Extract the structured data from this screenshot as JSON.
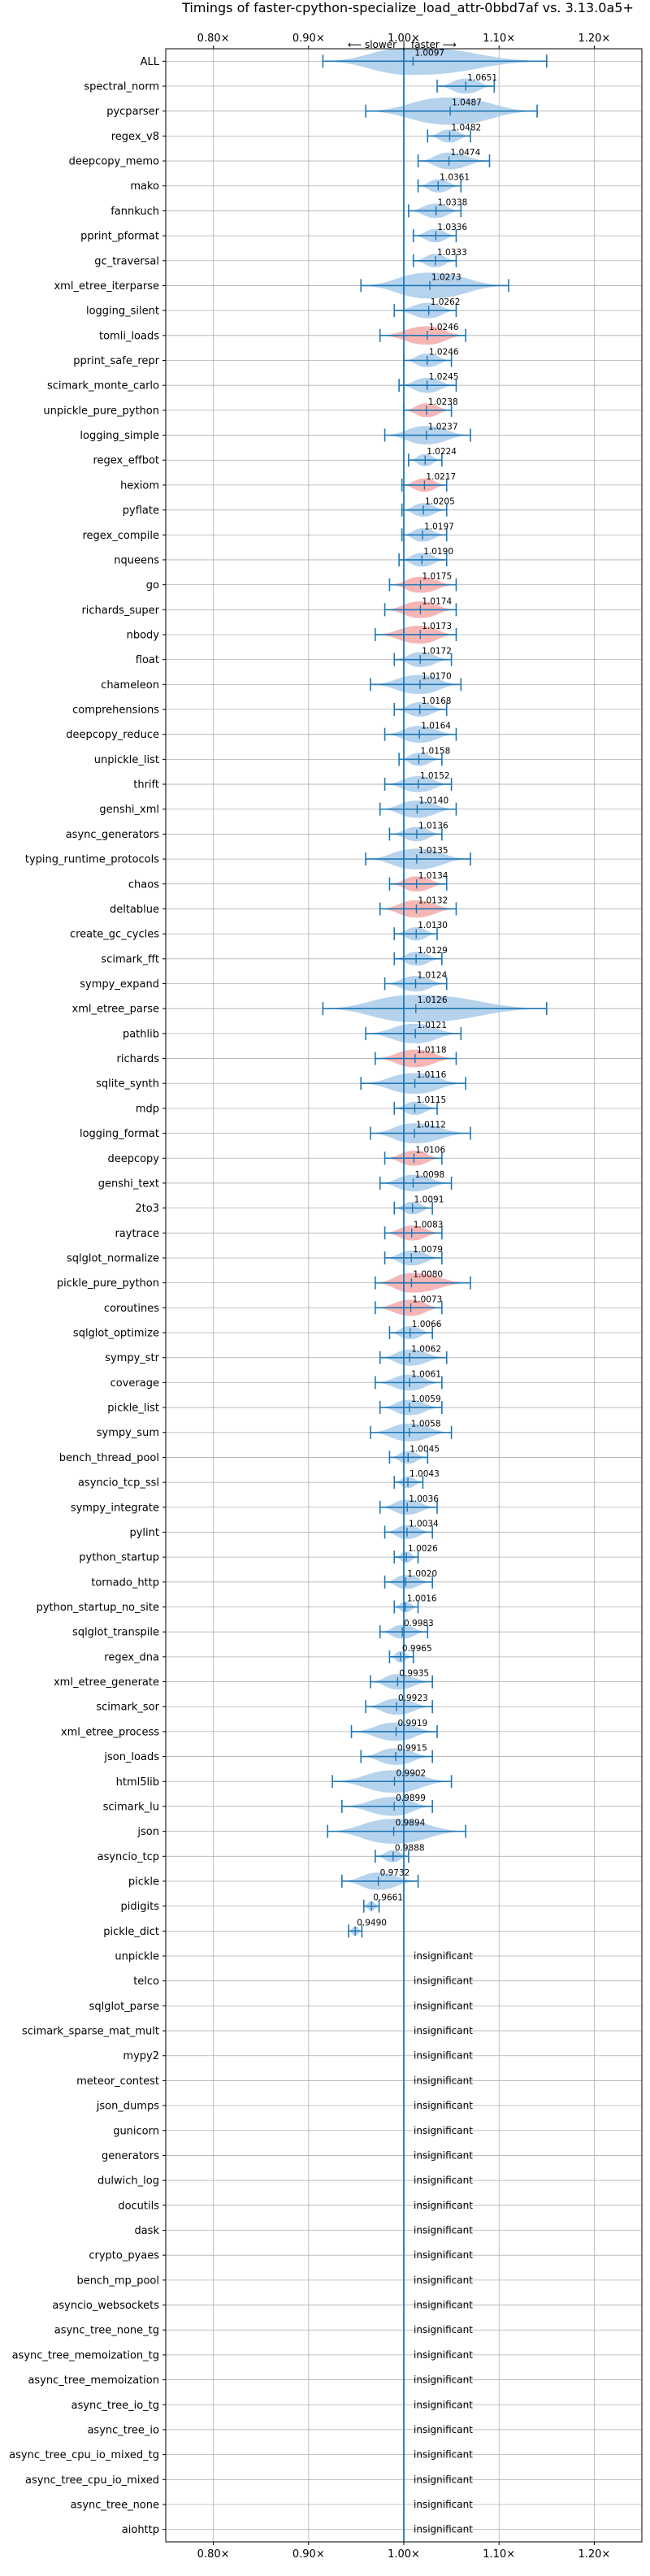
{
  "chart_data": {
    "type": "violin",
    "title": "Timings of faster-cpython-specialize_load_attr-0bbd7af vs. 3.13.0a5+",
    "direction_labels": {
      "slower": "⟵ slower",
      "separator": "|",
      "faster": "faster ⟶"
    },
    "xlim": [
      0.75,
      1.25
    ],
    "x_ticks": [
      0.8,
      0.9,
      1.0,
      1.1,
      1.2
    ],
    "x_tick_labels": [
      "0.80×",
      "0.90×",
      "1.00×",
      "1.10×",
      "1.20×"
    ],
    "reference_line": 1.0,
    "grid": true,
    "colors": {
      "faster": "#a9cbea",
      "slower": "#f4a9a9",
      "line": "#1f77b4",
      "grid": "#b0b0b0"
    },
    "insignificant_label": "insignificant",
    "benchmarks": [
      {
        "name": "ALL",
        "mean": 1.0097,
        "label": "1.0097",
        "lo": 0.915,
        "hi": 1.15,
        "color": "faster"
      },
      {
        "name": "spectral_norm",
        "mean": 1.0651,
        "label": "1.0651",
        "lo": 1.035,
        "hi": 1.095,
        "color": "faster"
      },
      {
        "name": "pycparser",
        "mean": 1.0487,
        "label": "1.0487",
        "lo": 0.96,
        "hi": 1.14,
        "color": "faster"
      },
      {
        "name": "regex_v8",
        "mean": 1.0482,
        "label": "1.0482",
        "lo": 1.025,
        "hi": 1.07,
        "color": "faster"
      },
      {
        "name": "deepcopy_memo",
        "mean": 1.0474,
        "label": "1.0474",
        "lo": 1.015,
        "hi": 1.09,
        "color": "faster"
      },
      {
        "name": "mako",
        "mean": 1.0361,
        "label": "1.0361",
        "lo": 1.015,
        "hi": 1.06,
        "color": "faster"
      },
      {
        "name": "fannkuch",
        "mean": 1.0338,
        "label": "1.0338",
        "lo": 1.005,
        "hi": 1.06,
        "color": "faster"
      },
      {
        "name": "pprint_pformat",
        "mean": 1.0336,
        "label": "1.0336",
        "lo": 1.01,
        "hi": 1.055,
        "color": "faster"
      },
      {
        "name": "gc_traversal",
        "mean": 1.0333,
        "label": "1.0333",
        "lo": 1.01,
        "hi": 1.055,
        "color": "faster"
      },
      {
        "name": "xml_etree_iterparse",
        "mean": 1.0273,
        "label": "1.0273",
        "lo": 0.955,
        "hi": 1.11,
        "color": "faster"
      },
      {
        "name": "logging_silent",
        "mean": 1.0262,
        "label": "1.0262",
        "lo": 0.99,
        "hi": 1.055,
        "color": "faster"
      },
      {
        "name": "tomli_loads",
        "mean": 1.0246,
        "label": "1.0246",
        "lo": 0.975,
        "hi": 1.065,
        "color": "slower"
      },
      {
        "name": "pprint_safe_repr",
        "mean": 1.0246,
        "label": "1.0246",
        "lo": 1.0,
        "hi": 1.05,
        "color": "faster"
      },
      {
        "name": "scimark_monte_carlo",
        "mean": 1.0245,
        "label": "1.0245",
        "lo": 0.995,
        "hi": 1.055,
        "color": "faster"
      },
      {
        "name": "unpickle_pure_python",
        "mean": 1.0238,
        "label": "1.0238",
        "lo": 1.0,
        "hi": 1.05,
        "color": "slower"
      },
      {
        "name": "logging_simple",
        "mean": 1.0237,
        "label": "1.0237",
        "lo": 0.98,
        "hi": 1.07,
        "color": "faster"
      },
      {
        "name": "regex_effbot",
        "mean": 1.0224,
        "label": "1.0224",
        "lo": 1.005,
        "hi": 1.04,
        "color": "faster"
      },
      {
        "name": "hexiom",
        "mean": 1.0217,
        "label": "1.0217",
        "lo": 0.998,
        "hi": 1.045,
        "color": "slower"
      },
      {
        "name": "pyflate",
        "mean": 1.0205,
        "label": "1.0205",
        "lo": 0.998,
        "hi": 1.045,
        "color": "faster"
      },
      {
        "name": "regex_compile",
        "mean": 1.0197,
        "label": "1.0197",
        "lo": 0.998,
        "hi": 1.045,
        "color": "faster"
      },
      {
        "name": "nqueens",
        "mean": 1.019,
        "label": "1.0190",
        "lo": 0.995,
        "hi": 1.045,
        "color": "faster"
      },
      {
        "name": "go",
        "mean": 1.0175,
        "label": "1.0175",
        "lo": 0.985,
        "hi": 1.055,
        "color": "slower"
      },
      {
        "name": "richards_super",
        "mean": 1.0174,
        "label": "1.0174",
        "lo": 0.98,
        "hi": 1.055,
        "color": "slower"
      },
      {
        "name": "nbody",
        "mean": 1.0173,
        "label": "1.0173",
        "lo": 0.97,
        "hi": 1.055,
        "color": "slower"
      },
      {
        "name": "float",
        "mean": 1.0172,
        "label": "1.0172",
        "lo": 0.99,
        "hi": 1.05,
        "color": "faster"
      },
      {
        "name": "chameleon",
        "mean": 1.017,
        "label": "1.0170",
        "lo": 0.965,
        "hi": 1.06,
        "color": "faster"
      },
      {
        "name": "comprehensions",
        "mean": 1.0168,
        "label": "1.0168",
        "lo": 0.99,
        "hi": 1.045,
        "color": "faster"
      },
      {
        "name": "deepcopy_reduce",
        "mean": 1.0164,
        "label": "1.0164",
        "lo": 0.98,
        "hi": 1.055,
        "color": "faster"
      },
      {
        "name": "unpickle_list",
        "mean": 1.0158,
        "label": "1.0158",
        "lo": 0.995,
        "hi": 1.04,
        "color": "faster"
      },
      {
        "name": "thrift",
        "mean": 1.0152,
        "label": "1.0152",
        "lo": 0.98,
        "hi": 1.05,
        "color": "faster"
      },
      {
        "name": "genshi_xml",
        "mean": 1.014,
        "label": "1.0140",
        "lo": 0.975,
        "hi": 1.055,
        "color": "faster"
      },
      {
        "name": "async_generators",
        "mean": 1.0136,
        "label": "1.0136",
        "lo": 0.985,
        "hi": 1.04,
        "color": "faster"
      },
      {
        "name": "typing_runtime_protocols",
        "mean": 1.0135,
        "label": "1.0135",
        "lo": 0.96,
        "hi": 1.07,
        "color": "faster"
      },
      {
        "name": "chaos",
        "mean": 1.0134,
        "label": "1.0134",
        "lo": 0.985,
        "hi": 1.045,
        "color": "slower"
      },
      {
        "name": "deltablue",
        "mean": 1.0132,
        "label": "1.0132",
        "lo": 0.975,
        "hi": 1.055,
        "color": "slower"
      },
      {
        "name": "create_gc_cycles",
        "mean": 1.013,
        "label": "1.0130",
        "lo": 0.99,
        "hi": 1.035,
        "color": "faster"
      },
      {
        "name": "scimark_fft",
        "mean": 1.0129,
        "label": "1.0129",
        "lo": 0.99,
        "hi": 1.04,
        "color": "faster"
      },
      {
        "name": "sympy_expand",
        "mean": 1.0124,
        "label": "1.0124",
        "lo": 0.98,
        "hi": 1.045,
        "color": "faster"
      },
      {
        "name": "xml_etree_parse",
        "mean": 1.0126,
        "label": "1.0126",
        "lo": 0.915,
        "hi": 1.15,
        "color": "faster"
      },
      {
        "name": "pathlib",
        "mean": 1.0121,
        "label": "1.0121",
        "lo": 0.96,
        "hi": 1.06,
        "color": "faster"
      },
      {
        "name": "richards",
        "mean": 1.0118,
        "label": "1.0118",
        "lo": 0.97,
        "hi": 1.055,
        "color": "slower"
      },
      {
        "name": "sqlite_synth",
        "mean": 1.0116,
        "label": "1.0116",
        "lo": 0.955,
        "hi": 1.065,
        "color": "faster"
      },
      {
        "name": "mdp",
        "mean": 1.0115,
        "label": "1.0115",
        "lo": 0.99,
        "hi": 1.035,
        "color": "faster"
      },
      {
        "name": "logging_format",
        "mean": 1.0112,
        "label": "1.0112",
        "lo": 0.965,
        "hi": 1.07,
        "color": "faster"
      },
      {
        "name": "deepcopy",
        "mean": 1.0106,
        "label": "1.0106",
        "lo": 0.98,
        "hi": 1.04,
        "color": "slower"
      },
      {
        "name": "genshi_text",
        "mean": 1.0098,
        "label": "1.0098",
        "lo": 0.975,
        "hi": 1.05,
        "color": "faster"
      },
      {
        "name": "2to3",
        "mean": 1.0091,
        "label": "1.0091",
        "lo": 0.99,
        "hi": 1.03,
        "color": "faster"
      },
      {
        "name": "raytrace",
        "mean": 1.0083,
        "label": "1.0083",
        "lo": 0.98,
        "hi": 1.04,
        "color": "slower"
      },
      {
        "name": "sqlglot_normalize",
        "mean": 1.0079,
        "label": "1.0079",
        "lo": 0.98,
        "hi": 1.04,
        "color": "faster"
      },
      {
        "name": "pickle_pure_python",
        "mean": 1.008,
        "label": "1.0080",
        "lo": 0.97,
        "hi": 1.07,
        "color": "slower"
      },
      {
        "name": "coroutines",
        "mean": 1.0073,
        "label": "1.0073",
        "lo": 0.97,
        "hi": 1.04,
        "color": "slower"
      },
      {
        "name": "sqlglot_optimize",
        "mean": 1.0066,
        "label": "1.0066",
        "lo": 0.985,
        "hi": 1.03,
        "color": "faster"
      },
      {
        "name": "sympy_str",
        "mean": 1.0062,
        "label": "1.0062",
        "lo": 0.975,
        "hi": 1.045,
        "color": "faster"
      },
      {
        "name": "coverage",
        "mean": 1.0061,
        "label": "1.0061",
        "lo": 0.97,
        "hi": 1.04,
        "color": "faster"
      },
      {
        "name": "pickle_list",
        "mean": 1.0059,
        "label": "1.0059",
        "lo": 0.975,
        "hi": 1.04,
        "color": "faster"
      },
      {
        "name": "sympy_sum",
        "mean": 1.0058,
        "label": "1.0058",
        "lo": 0.965,
        "hi": 1.05,
        "color": "faster"
      },
      {
        "name": "bench_thread_pool",
        "mean": 1.0045,
        "label": "1.0045",
        "lo": 0.985,
        "hi": 1.025,
        "color": "faster"
      },
      {
        "name": "asyncio_tcp_ssl",
        "mean": 1.0043,
        "label": "1.0043",
        "lo": 0.99,
        "hi": 1.02,
        "color": "faster"
      },
      {
        "name": "sympy_integrate",
        "mean": 1.0036,
        "label": "1.0036",
        "lo": 0.975,
        "hi": 1.035,
        "color": "faster"
      },
      {
        "name": "pylint",
        "mean": 1.0034,
        "label": "1.0034",
        "lo": 0.98,
        "hi": 1.03,
        "color": "faster"
      },
      {
        "name": "python_startup",
        "mean": 1.0026,
        "label": "1.0026",
        "lo": 0.99,
        "hi": 1.015,
        "color": "faster"
      },
      {
        "name": "tornado_http",
        "mean": 1.002,
        "label": "1.0020",
        "lo": 0.98,
        "hi": 1.03,
        "color": "faster"
      },
      {
        "name": "python_startup_no_site",
        "mean": 1.0016,
        "label": "1.0016",
        "lo": 0.99,
        "hi": 1.015,
        "color": "faster"
      },
      {
        "name": "sqlglot_transpile",
        "mean": 0.9983,
        "label": "0.9983",
        "lo": 0.975,
        "hi": 1.025,
        "color": "faster"
      },
      {
        "name": "regex_dna",
        "mean": 0.9965,
        "label": "0.9965",
        "lo": 0.985,
        "hi": 1.01,
        "color": "faster"
      },
      {
        "name": "xml_etree_generate",
        "mean": 0.9935,
        "label": "0.9935",
        "lo": 0.965,
        "hi": 1.03,
        "color": "faster"
      },
      {
        "name": "scimark_sor",
        "mean": 0.9923,
        "label": "0.9923",
        "lo": 0.96,
        "hi": 1.03,
        "color": "faster"
      },
      {
        "name": "xml_etree_process",
        "mean": 0.9919,
        "label": "0.9919",
        "lo": 0.945,
        "hi": 1.035,
        "color": "faster"
      },
      {
        "name": "json_loads",
        "mean": 0.9915,
        "label": "0.9915",
        "lo": 0.955,
        "hi": 1.03,
        "color": "faster"
      },
      {
        "name": "html5lib",
        "mean": 0.9902,
        "label": "0.9902",
        "lo": 0.925,
        "hi": 1.05,
        "color": "faster"
      },
      {
        "name": "scimark_lu",
        "mean": 0.9899,
        "label": "0.9899",
        "lo": 0.935,
        "hi": 1.03,
        "color": "faster"
      },
      {
        "name": "json",
        "mean": 0.9894,
        "label": "0.9894",
        "lo": 0.92,
        "hi": 1.065,
        "color": "faster"
      },
      {
        "name": "asyncio_tcp",
        "mean": 0.9888,
        "label": "0.9888",
        "lo": 0.97,
        "hi": 1.005,
        "color": "faster"
      },
      {
        "name": "pickle",
        "mean": 0.9732,
        "label": "0.9732",
        "lo": 0.935,
        "hi": 1.015,
        "color": "faster"
      },
      {
        "name": "pidigits",
        "mean": 0.9661,
        "label": "0.9661",
        "lo": 0.958,
        "hi": 0.974,
        "color": "faster"
      },
      {
        "name": "pickle_dict",
        "mean": 0.949,
        "label": "0.9490",
        "lo": 0.942,
        "hi": 0.956,
        "color": "faster"
      },
      {
        "name": "unpickle",
        "insignificant": true
      },
      {
        "name": "telco",
        "insignificant": true
      },
      {
        "name": "sqlglot_parse",
        "insignificant": true
      },
      {
        "name": "scimark_sparse_mat_mult",
        "insignificant": true
      },
      {
        "name": "mypy2",
        "insignificant": true
      },
      {
        "name": "meteor_contest",
        "insignificant": true
      },
      {
        "name": "json_dumps",
        "insignificant": true
      },
      {
        "name": "gunicorn",
        "insignificant": true
      },
      {
        "name": "generators",
        "insignificant": true
      },
      {
        "name": "dulwich_log",
        "insignificant": true
      },
      {
        "name": "docutils",
        "insignificant": true
      },
      {
        "name": "dask",
        "insignificant": true
      },
      {
        "name": "crypto_pyaes",
        "insignificant": true
      },
      {
        "name": "bench_mp_pool",
        "insignificant": true
      },
      {
        "name": "asyncio_websockets",
        "insignificant": true
      },
      {
        "name": "async_tree_none_tg",
        "insignificant": true
      },
      {
        "name": "async_tree_memoization_tg",
        "insignificant": true
      },
      {
        "name": "async_tree_memoization",
        "insignificant": true
      },
      {
        "name": "async_tree_io_tg",
        "insignificant": true
      },
      {
        "name": "async_tree_io",
        "insignificant": true
      },
      {
        "name": "async_tree_cpu_io_mixed_tg",
        "insignificant": true
      },
      {
        "name": "async_tree_cpu_io_mixed",
        "insignificant": true
      },
      {
        "name": "async_tree_none",
        "insignificant": true
      },
      {
        "name": "aiohttp",
        "insignificant": true
      }
    ]
  }
}
